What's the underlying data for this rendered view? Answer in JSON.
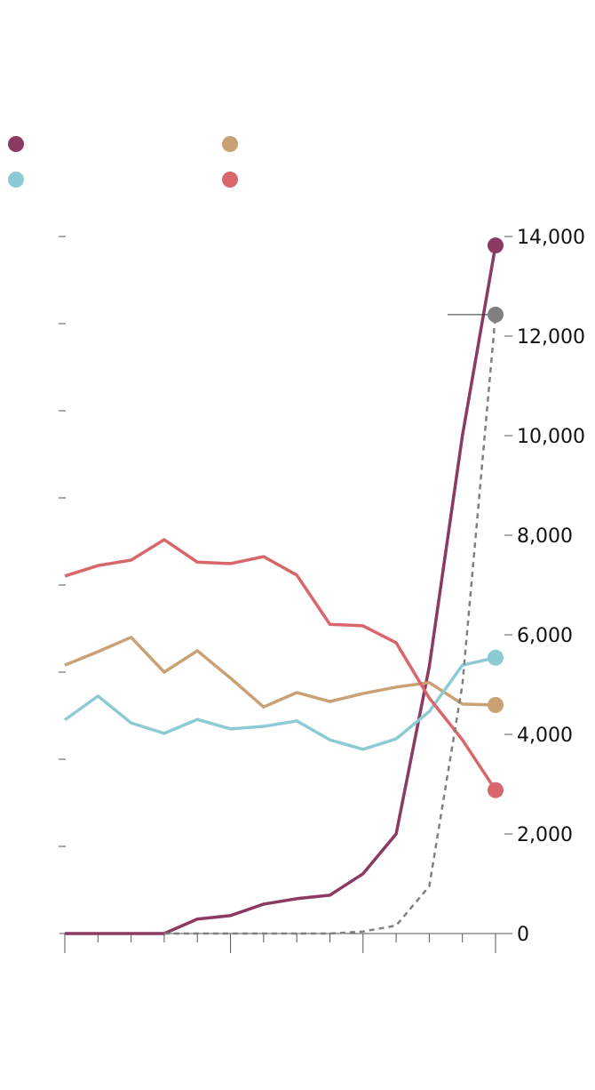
{
  "chart_data": {
    "type": "line",
    "categories": [
      null,
      null,
      null,
      null,
      null,
      null,
      null,
      null,
      null,
      null,
      null,
      null,
      null,
      null
    ],
    "series": [
      {
        "color": "#8b3a62",
        "values": [
          0,
          0,
          0,
          0,
          290,
          360,
          590,
          700,
          770,
          1200,
          2000,
          5360,
          10000,
          13820
        ]
      },
      {
        "color": "#c9a174",
        "values": [
          5390,
          5660,
          5950,
          5250,
          5680,
          5130,
          4550,
          4840,
          4660,
          4820,
          4950,
          5040,
          4610,
          4590
        ]
      },
      {
        "color": "#8dcbd4",
        "values": [
          4290,
          4770,
          4230,
          4020,
          4300,
          4110,
          4160,
          4270,
          3890,
          3700,
          3910,
          4460,
          5390,
          5540
        ]
      },
      {
        "color": "#d8666a",
        "values": [
          7180,
          7390,
          7500,
          7910,
          7460,
          7430,
          7570,
          7200,
          6210,
          6180,
          5840,
          4730,
          3890,
          2880
        ]
      },
      {
        "color": "#808080",
        "dashed": true,
        "values": [
          null,
          null,
          null,
          0,
          0,
          0,
          0,
          0,
          0,
          40,
          160,
          950,
          5000,
          12430
        ]
      }
    ],
    "ylim": [
      0,
      14000
    ],
    "yticks": [
      0,
      {
        "value": 2000,
        "label": "2,000"
      },
      {
        "value": 4000,
        "label": "4,000"
      },
      {
        "value": 6000,
        "label": "6,000"
      },
      {
        "value": 8000,
        "label": "8,000"
      },
      {
        "value": 10000,
        "label": "10,000"
      },
      {
        "value": 12000,
        "label": "12,000"
      },
      {
        "value": 14000,
        "label": "14,000"
      }
    ]
  }
}
